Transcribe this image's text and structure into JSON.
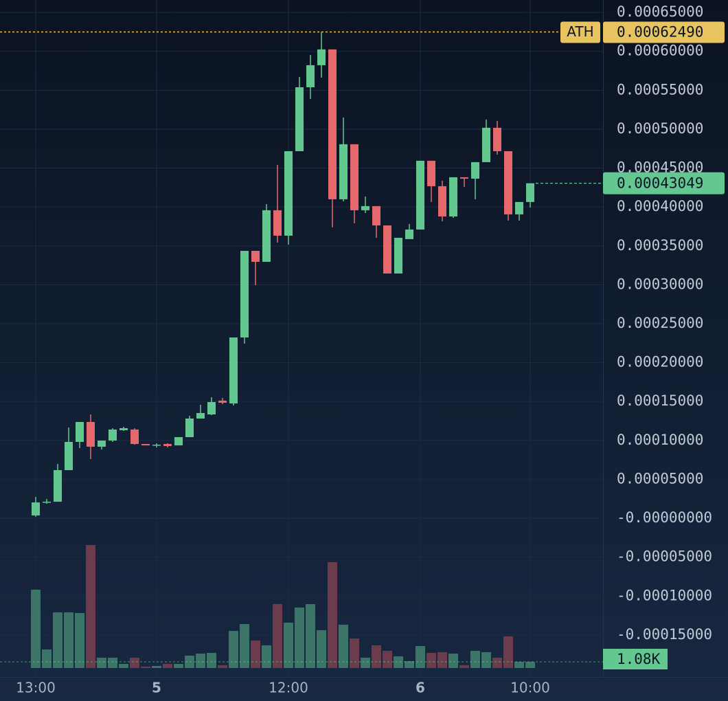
{
  "chart_data": {
    "type": "candlestick",
    "categories": [
      "13:00",
      null,
      null,
      null,
      null,
      null,
      null,
      null,
      null,
      null,
      null,
      "5",
      null,
      null,
      null,
      null,
      null,
      null,
      null,
      null,
      null,
      null,
      null,
      "12:00",
      null,
      null,
      null,
      null,
      null,
      null,
      null,
      null,
      null,
      null,
      null,
      "6",
      null,
      null,
      null,
      null,
      null,
      null,
      null,
      null,
      null,
      "10:00"
    ],
    "open": [
      3.5e-06,
      2.03e-05,
      2.12e-05,
      6.18e-05,
      9.81e-05,
      0.0001237,
      9.19e-05,
      9.98e-05,
      0.0001131,
      0.000114,
      9.54e-05,
      9.36e-05,
      9.54e-05,
      9.36e-05,
      0.0001042,
      0.0001281,
      0.0001334,
      0.0001511,
      0.0001475,
      0.0002323,
      0.0003436,
      0.0003295,
      0.0003958,
      0.0003631,
      0.0004717,
      0.0005539,
      0.0005822,
      0.0006025,
      0.0004099,
      0.0004806,
      0.0003958,
      0.0004011,
      0.0003763,
      0.0003145,
      0.0003587,
      0.000371,
      0.0004594,
      0.0004267,
      0.0003878,
      0.0004382,
      0.0004364,
      0.0004576,
      0.0005018,
      0.0004717,
      0.0003905,
      0.0004064
    ],
    "high": [
      2.74e-05,
      2.47e-05,
      6.98e-05,
      0.0001166,
      0.0001237,
      0.0001334,
      9.98e-05,
      0.0001157,
      0.0001175,
      0.0001157,
      9.54e-05,
      9.63e-05,
      9.63e-05,
      0.0001042,
      0.0001316,
      0.0001458,
      0.0001555,
      0.0001546,
      0.0002323,
      0.0003436,
      0.0003436,
      0.0004037,
      0.0004541,
      0.0004717,
      0.0005671,
      0.0005954,
      0.0006249,
      0.0006025,
      0.000515,
      0.0004806,
      0.0004134,
      0.0004011,
      0.0003763,
      0.0003604,
      0.0003781,
      0.0004594,
      0.0004594,
      0.0004337,
      0.0004382,
      0.0004382,
      0.0004576,
      0.0005124,
      0.0005106,
      0.0004717,
      0.0004064,
      0.00043049
    ],
    "low": [
      1.8e-06,
      1.86e-05,
      2.12e-05,
      6.18e-05,
      9.01e-05,
      7.6e-05,
      8.83e-05,
      9.81e-05,
      0.0001122,
      9.45e-05,
      9.36e-05,
      9.1e-05,
      9.1e-05,
      9.36e-05,
      0.0001042,
      0.0001281,
      0.0001325,
      0.0001466,
      0.0001449,
      0.0002244,
      0.0002995,
      0.0003295,
      0.0003542,
      0.0003516,
      0.0004717,
      0.0005389,
      0.0005663,
      0.0003737,
      0.0004072,
      0.000379,
      0.0003922,
      0.0003604,
      0.0003145,
      0.0003145,
      0.0003587,
      0.000371,
      0.0004064,
      0.0003816,
      0.000386,
      0.0004258,
      0.0004099,
      0.0004576,
      0.0004673,
      0.0003825,
      0.0003825,
      0.0003993
    ],
    "close": [
      2.03e-05,
      2.12e-05,
      6.18e-05,
      9.81e-05,
      0.0001237,
      9.19e-05,
      9.98e-05,
      0.000114,
      0.0001157,
      9.54e-05,
      9.36e-05,
      9.45e-05,
      9.28e-05,
      0.0001042,
      0.0001281,
      0.0001352,
      0.0001493,
      0.0001484,
      0.0002323,
      0.0003436,
      0.0003295,
      0.0003958,
      0.0003631,
      0.0004717,
      0.0005539,
      0.0005822,
      0.0006025,
      0.0004099,
      0.0004806,
      0.0003958,
      0.0004011,
      0.0003763,
      0.0003145,
      0.0003604,
      0.000371,
      0.0004594,
      0.0004267,
      0.0003878,
      0.0004382,
      0.0004364,
      0.0004576,
      0.0005018,
      0.0004717,
      0.0003905,
      0.0004064,
      0.00043049
    ],
    "volume": [
      13680,
      3240,
      9720,
      9720,
      9600,
      21480,
      1800,
      1800,
      720,
      1800,
      240,
      360,
      720,
      720,
      2160,
      2520,
      2640,
      480,
      6480,
      7680,
      4800,
      3960,
      11160,
      7920,
      10560,
      11160,
      6600,
      18480,
      7560,
      5160,
      1800,
      3960,
      3000,
      2040,
      1200,
      3840,
      2640,
      2760,
      2520,
      480,
      3000,
      2760,
      1800,
      5520,
      1080,
      1080
    ],
    "current_volume": {
      "value": 1080,
      "label": "1.08K"
    },
    "current_price": 0.00043049,
    "ath": {
      "label": "ATH",
      "value": 0.0006249,
      "value_label": "0.00062490"
    },
    "ylim": [
      -0.000204,
      0.000666
    ],
    "yticks": [
      {
        "value": 0.00065,
        "label": "0.00065000"
      },
      {
        "value": 0.0006,
        "label": "0.00060000"
      },
      {
        "value": 0.00055,
        "label": "0.00055000"
      },
      {
        "value": 0.0005,
        "label": "0.00050000"
      },
      {
        "value": 0.00045,
        "label": "0.00045000"
      },
      {
        "value": 0.0004,
        "label": "0.00040000"
      },
      {
        "value": 0.00035,
        "label": "0.00035000"
      },
      {
        "value": 0.0003,
        "label": "0.00030000"
      },
      {
        "value": 0.00025,
        "label": "0.00025000"
      },
      {
        "value": 0.0002,
        "label": "0.00020000"
      },
      {
        "value": 0.00015,
        "label": "0.00015000"
      },
      {
        "value": 0.0001,
        "label": "0.00010000"
      },
      {
        "value": 5e-05,
        "label": "0.00005000"
      },
      {
        "value": 0,
        "label": "-0.00000000"
      },
      {
        "value": -5e-05,
        "label": "-0.00005000"
      },
      {
        "value": -0.0001,
        "label": "-0.00010000"
      },
      {
        "value": -0.00015,
        "label": "-0.00015000"
      }
    ],
    "grid": true,
    "up_color": "#63c88f",
    "down_color": "#e5696c",
    "volume_up_color": "#3b7568",
    "volume_down_color": "#6c3b4c",
    "ath_color": "#e8c45e"
  }
}
